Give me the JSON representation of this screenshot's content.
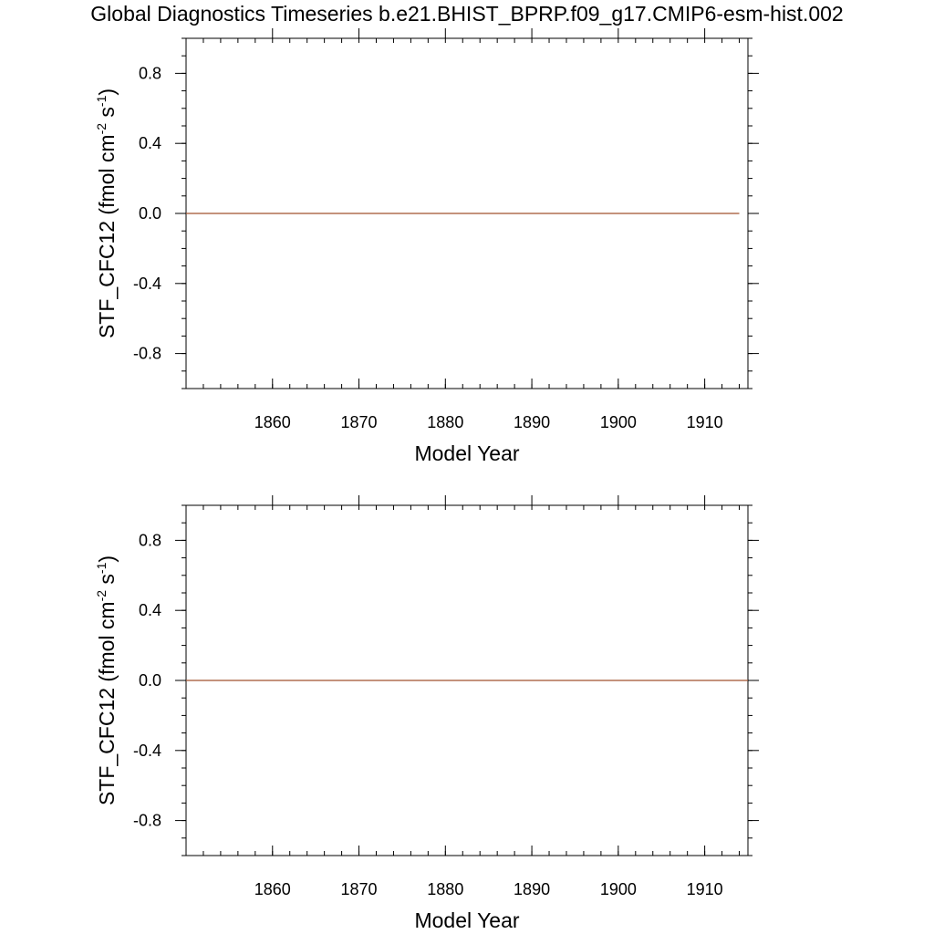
{
  "title": "Global Diagnostics Timeseries b.e21.BHIST_BPRP.f09_g17.CMIP6-esm-hist.002",
  "chart_data": [
    {
      "type": "line",
      "title": "",
      "xlabel": "Model Year",
      "ylabel": "STF_CFC12 (fmol cm",
      "ylabel_sup1": "-2",
      "ylabel_mid": " s",
      "ylabel_sup2": "-1",
      "ylabel_end": ")",
      "xlim": [
        1850,
        1915
      ],
      "ylim": [
        -1.0,
        1.0
      ],
      "x_ticks": [
        1860,
        1870,
        1880,
        1890,
        1900,
        1910
      ],
      "x_tick_labels": [
        "1860",
        "1870",
        "1880",
        "1890",
        "1900",
        "1910"
      ],
      "y_ticks": [
        0.8,
        0.4,
        0.0,
        -0.4,
        -0.8
      ],
      "y_tick_labels": [
        "0.8",
        "0.4",
        "0.0",
        "-0.4",
        "-0.8"
      ],
      "grid": false,
      "series": [
        {
          "color": "#a0522d",
          "x": [
            1850,
            1914
          ],
          "y": [
            0.0,
            0.0
          ]
        }
      ]
    },
    {
      "type": "line",
      "title": "",
      "xlabel": "Model Year",
      "ylabel": "STF_CFC12 (fmol cm",
      "ylabel_sup1": "-2",
      "ylabel_mid": " s",
      "ylabel_sup2": "-1",
      "ylabel_end": ")",
      "xlim": [
        1850,
        1915
      ],
      "ylim": [
        -1.0,
        1.0
      ],
      "x_ticks": [
        1860,
        1870,
        1880,
        1890,
        1900,
        1910
      ],
      "x_tick_labels": [
        "1860",
        "1870",
        "1880",
        "1890",
        "1900",
        "1910"
      ],
      "y_ticks": [
        0.8,
        0.4,
        0.0,
        -0.4,
        -0.8
      ],
      "y_tick_labels": [
        "0.8",
        "0.4",
        "0.0",
        "-0.4",
        "-0.8"
      ],
      "grid": false,
      "series": [
        {
          "color": "#a0522d",
          "x": [
            1850,
            1915
          ],
          "y": [
            0.0,
            0.0
          ]
        }
      ]
    }
  ]
}
